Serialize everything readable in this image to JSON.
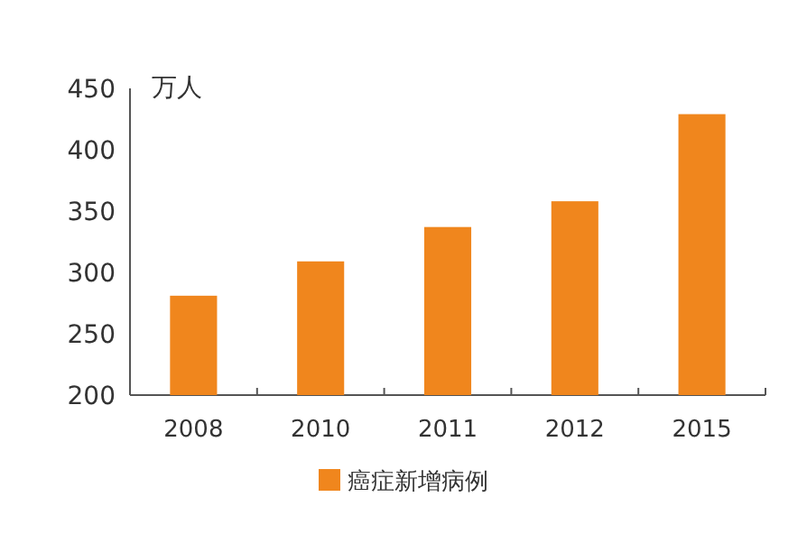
{
  "chart_data": {
    "type": "bar",
    "ylabel": "万人",
    "categories": [
      "2008",
      "2010",
      "2011",
      "2012",
      "2015"
    ],
    "series": [
      {
        "name": "癌症新增病例",
        "color": "#f0861d",
        "values": [
          281,
          309,
          337,
          358,
          429
        ]
      }
    ],
    "ylim": [
      200,
      450
    ],
    "yticks": [
      200,
      250,
      300,
      350,
      400,
      450
    ],
    "legend": "bottom"
  }
}
